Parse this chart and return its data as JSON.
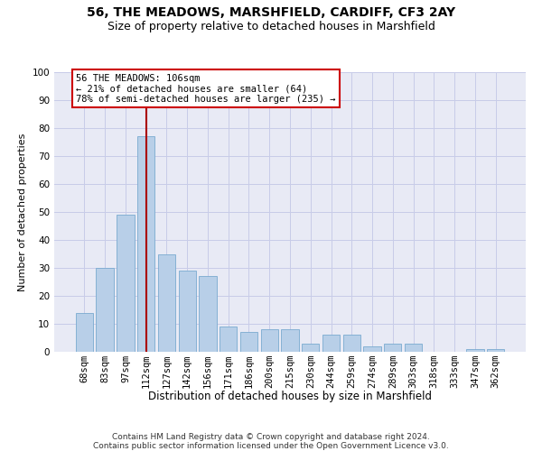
{
  "title": "56, THE MEADOWS, MARSHFIELD, CARDIFF, CF3 2AY",
  "subtitle": "Size of property relative to detached houses in Marshfield",
  "xlabel": "Distribution of detached houses by size in Marshfield",
  "ylabel": "Number of detached properties",
  "categories": [
    "68sqm",
    "83sqm",
    "97sqm",
    "112sqm",
    "127sqm",
    "142sqm",
    "156sqm",
    "171sqm",
    "186sqm",
    "200sqm",
    "215sqm",
    "230sqm",
    "244sqm",
    "259sqm",
    "274sqm",
    "289sqm",
    "303sqm",
    "318sqm",
    "333sqm",
    "347sqm",
    "362sqm"
  ],
  "values": [
    14,
    30,
    49,
    77,
    35,
    29,
    27,
    9,
    7,
    8,
    8,
    3,
    6,
    6,
    2,
    3,
    3,
    0,
    0,
    1,
    1
  ],
  "bar_color": "#b8cfe8",
  "bar_edge_color": "#7aaad0",
  "vline_index": 3,
  "vline_color": "#aa0000",
  "annotation_line1": "56 THE MEADOWS: 106sqm",
  "annotation_line2": "← 21% of detached houses are smaller (64)",
  "annotation_line3": "78% of semi-detached houses are larger (235) →",
  "annotation_box_facecolor": "#ffffff",
  "annotation_box_edgecolor": "#cc0000",
  "ylim": [
    0,
    100
  ],
  "yticks": [
    0,
    10,
    20,
    30,
    40,
    50,
    60,
    70,
    80,
    90,
    100
  ],
  "grid_color": "#c8cce8",
  "bg_color": "#e8eaf5",
  "footer_text": "Contains HM Land Registry data © Crown copyright and database right 2024.\nContains public sector information licensed under the Open Government Licence v3.0.",
  "title_fontsize": 10,
  "subtitle_fontsize": 9,
  "xlabel_fontsize": 8.5,
  "ylabel_fontsize": 8,
  "tick_fontsize": 7.5,
  "annotation_fontsize": 7.5,
  "footer_fontsize": 6.5
}
